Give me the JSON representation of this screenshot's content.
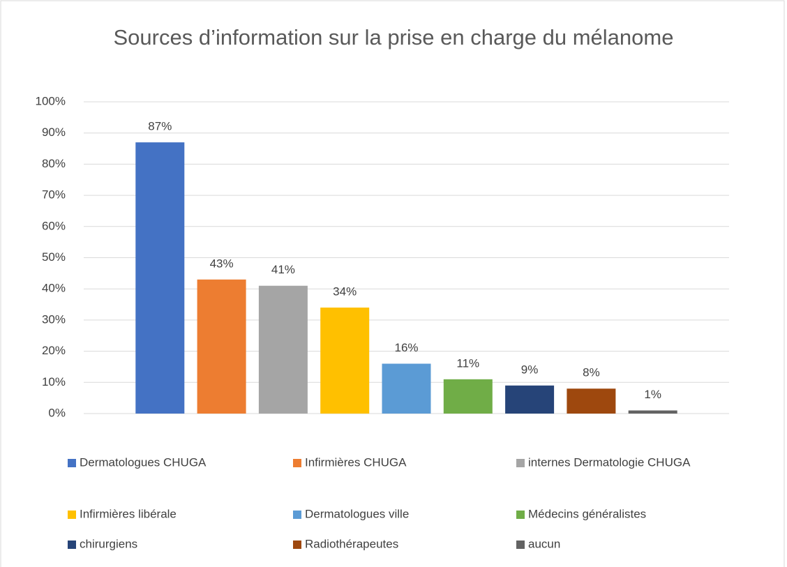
{
  "chart_data": {
    "type": "bar",
    "title": "Sources d’information sur la prise en charge du mélanome",
    "series": [
      {
        "name": "Dermatologues CHUGA",
        "color": "#4472c4",
        "values": [
          87
        ],
        "value_labels": [
          "87%"
        ]
      },
      {
        "name": "Infirmières CHUGA",
        "color": "#ed7d31",
        "values": [
          43
        ],
        "value_labels": [
          "43%"
        ]
      },
      {
        "name": "internes Dermatologie CHUGA",
        "color": "#a5a5a5",
        "values": [
          41
        ],
        "value_labels": [
          "41%"
        ]
      },
      {
        "name": "Infirmières libérale",
        "color": "#ffc000",
        "values": [
          34
        ],
        "value_labels": [
          "34%"
        ]
      },
      {
        "name": "Dermatologues ville",
        "color": "#5b9bd5",
        "values": [
          16
        ],
        "value_labels": [
          "16%"
        ]
      },
      {
        "name": "Médecins généralistes",
        "color": "#70ad47",
        "values": [
          11
        ],
        "value_labels": [
          "11%"
        ]
      },
      {
        "name": "chirurgiens",
        "color": "#264478",
        "values": [
          9
        ],
        "value_labels": [
          "9%"
        ]
      },
      {
        "name": "Radiothérapeutes",
        "color": "#9e480e",
        "values": [
          8
        ],
        "value_labels": [
          "8%"
        ]
      },
      {
        "name": "aucun",
        "color": "#636363",
        "values": [
          1
        ],
        "value_labels": [
          "1%"
        ]
      }
    ],
    "ylim": [
      0,
      100
    ],
    "yticks": [
      {
        "value": 0,
        "label": "0%"
      },
      {
        "value": 10,
        "label": "10%"
      },
      {
        "value": 20,
        "label": "20%"
      },
      {
        "value": 30,
        "label": "30%"
      },
      {
        "value": 40,
        "label": "40%"
      },
      {
        "value": 50,
        "label": "50%"
      },
      {
        "value": 60,
        "label": "60%"
      },
      {
        "value": 70,
        "label": "70%"
      },
      {
        "value": 80,
        "label": "80%"
      },
      {
        "value": 90,
        "label": "90%"
      },
      {
        "value": 100,
        "label": "100%"
      }
    ],
    "grid": true,
    "legend": "bottom"
  }
}
